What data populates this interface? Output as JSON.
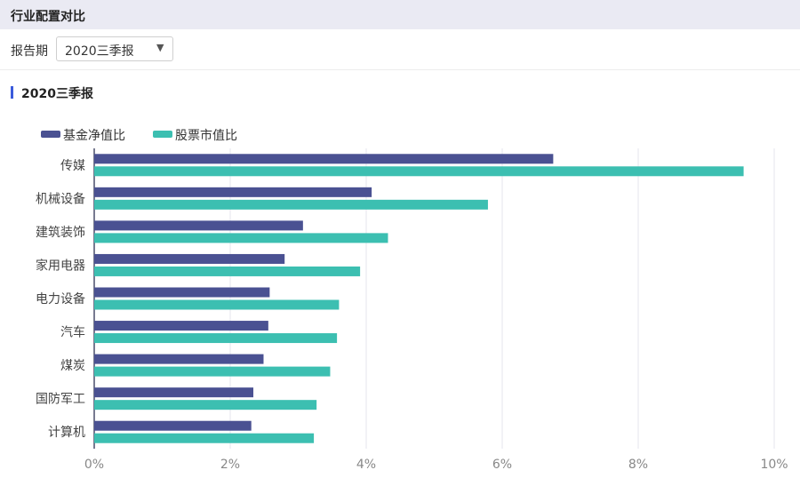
{
  "panel": {
    "title": "行业配置对比"
  },
  "filter": {
    "label": "报告期",
    "selected": "2020三季报",
    "arrow_icon": "chevron-down-icon"
  },
  "section": {
    "title": "2020三季报",
    "marker_color": "#3b5bdb"
  },
  "colors": {
    "fund_nav_ratio": "#4a5192",
    "stock_mkt_ratio": "#3cbfb1"
  },
  "chart_data": {
    "type": "bar",
    "orientation": "horizontal",
    "categories": [
      "传媒",
      "机械设备",
      "建筑装饰",
      "家用电器",
      "电力设备",
      "汽车",
      "煤炭",
      "国防军工",
      "计算机"
    ],
    "series": [
      {
        "name": "基金净值比",
        "values": [
          6.75,
          4.08,
          3.07,
          2.8,
          2.58,
          2.56,
          2.49,
          2.34,
          2.31
        ]
      },
      {
        "name": "股票市值比",
        "values": [
          9.55,
          5.79,
          4.32,
          3.91,
          3.6,
          3.57,
          3.47,
          3.27,
          3.23
        ]
      }
    ],
    "xlim": [
      0,
      10
    ],
    "xticks": [
      "0%",
      "2%",
      "4%",
      "6%",
      "8%",
      "10%"
    ],
    "xlabel": "",
    "ylabel": "",
    "legend_position": "top-left",
    "grid": true
  }
}
